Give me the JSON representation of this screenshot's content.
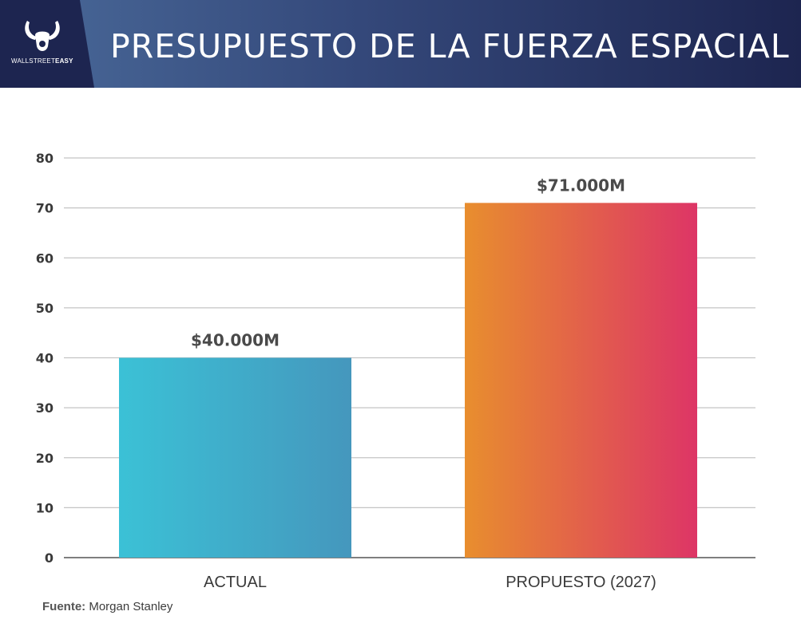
{
  "header": {
    "title": "PRESUPUESTO DE LA FUERZA ESPACIAL",
    "logo": {
      "icon": "bull-horns-icon",
      "text_regular": "WALLSTREET",
      "text_bold": "EASY"
    }
  },
  "chart_data": {
    "type": "bar",
    "categories": [
      "ACTUAL",
      "PROPUESTO (2027)"
    ],
    "values": [
      40,
      71
    ],
    "data_labels": [
      "$40.000M",
      "$71.000M"
    ],
    "title": "",
    "xlabel": "",
    "ylabel": "",
    "ylim": [
      0,
      80
    ],
    "yticks": [
      0,
      10,
      20,
      30,
      40,
      50,
      60,
      70,
      80
    ],
    "grid": true,
    "bar_gradients": [
      [
        "#3bc1d6",
        "#4597bd"
      ],
      [
        "#e88e2e",
        "#dd3566"
      ]
    ]
  },
  "footer": {
    "source_label": "Fuente:",
    "source_value": "Morgan Stanley"
  }
}
